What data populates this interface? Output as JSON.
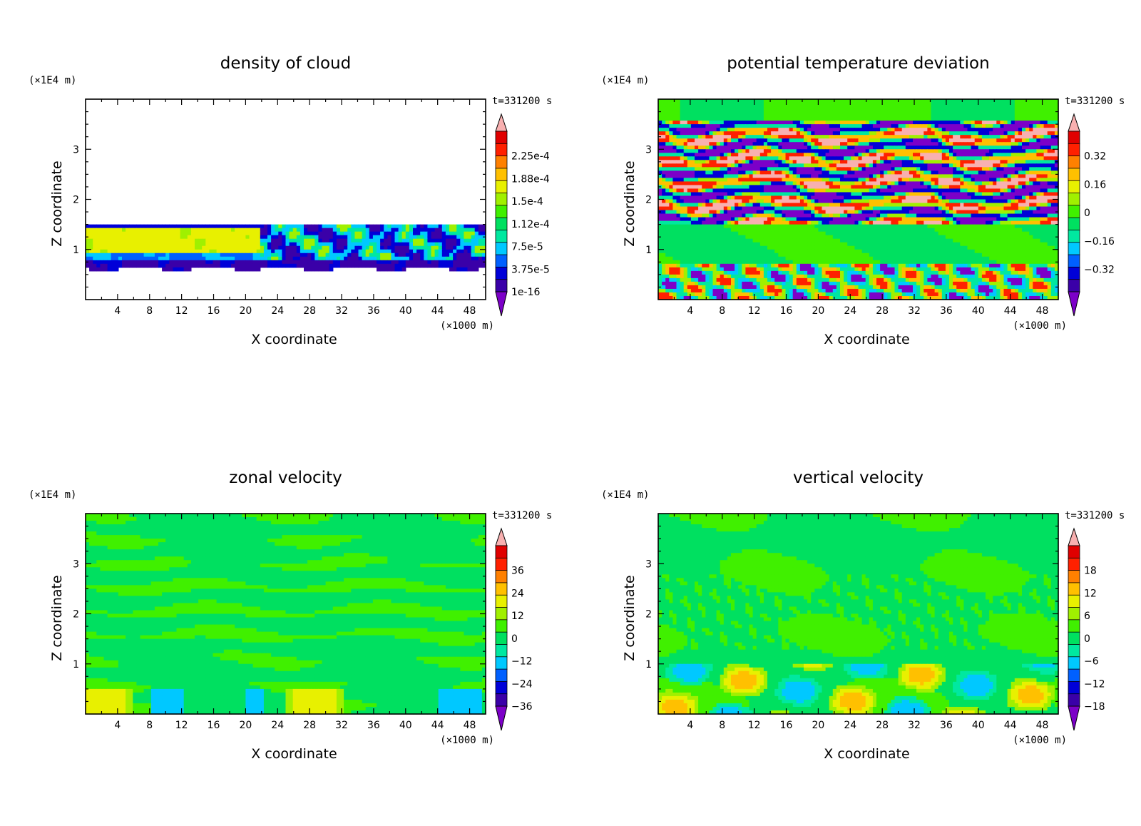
{
  "figure": {
    "colors": {
      "background": "#ffffff",
      "frame": "#000000",
      "palette": [
        "#7c00c8",
        "#3a00a8",
        "#0000d8",
        "#0060ff",
        "#00c8ff",
        "#00e8a0",
        "#00e060",
        "#40f000",
        "#a0f000",
        "#e8f000",
        "#ffc000",
        "#ff8000",
        "#ff2000",
        "#e00000",
        "#f8b0b0"
      ]
    },
    "chart_data": [
      {
        "type": "heatmap",
        "title": "density of cloud",
        "xlabel": "X coordinate",
        "ylabel": "Z coordinate",
        "x_unit": "(×1000 m)",
        "y_unit": "(×1E4 m)",
        "time": "t=331200 s",
        "xlim": [
          0,
          50
        ],
        "ylim": [
          0,
          4
        ],
        "xticks": [
          "4",
          "8",
          "12",
          "16",
          "20",
          "24",
          "28",
          "32",
          "36",
          "40",
          "44",
          "48"
        ],
        "yticks": [
          "1",
          "2",
          "3"
        ],
        "colorbar_labels": [
          "2.25e-4",
          "1.88e-4",
          "1.5e-4",
          "1.12e-4",
          "7.5e-5",
          "3.75e-5",
          "1e-16"
        ],
        "pattern": "cloud"
      },
      {
        "type": "heatmap",
        "title": "potential temperature deviation",
        "xlabel": "X coordinate",
        "ylabel": "Z coordinate",
        "x_unit": "(×1000 m)",
        "y_unit": "(×1E4 m)",
        "time": "t=331200 s",
        "xlim": [
          0,
          50
        ],
        "ylim": [
          0,
          4
        ],
        "xticks": [
          "4",
          "8",
          "12",
          "16",
          "20",
          "24",
          "28",
          "32",
          "36",
          "40",
          "44",
          "48"
        ],
        "yticks": [
          "1",
          "2",
          "3"
        ],
        "colorbar_labels": [
          "0.32",
          "0.16",
          "0",
          "−0.16",
          "−0.32"
        ],
        "pattern": "theta"
      },
      {
        "type": "heatmap",
        "title": "zonal velocity",
        "xlabel": "X coordinate",
        "ylabel": "Z coordinate",
        "x_unit": "(×1000 m)",
        "y_unit": "(×1E4 m)",
        "time": "t=331200 s",
        "xlim": [
          0,
          50
        ],
        "ylim": [
          0,
          4
        ],
        "xticks": [
          "4",
          "8",
          "12",
          "16",
          "20",
          "24",
          "28",
          "32",
          "36",
          "40",
          "44",
          "48"
        ],
        "yticks": [
          "1",
          "2",
          "3"
        ],
        "colorbar_labels": [
          "36",
          "24",
          "12",
          "0",
          "−12",
          "−24",
          "−36"
        ],
        "pattern": "zonal"
      },
      {
        "type": "heatmap",
        "title": "vertical velocity",
        "xlabel": "X coordinate",
        "ylabel": "Z coordinate",
        "x_unit": "(×1000 m)",
        "y_unit": "(×1E4 m)",
        "time": "t=331200 s",
        "xlim": [
          0,
          50
        ],
        "ylim": [
          0,
          4
        ],
        "xticks": [
          "4",
          "8",
          "12",
          "16",
          "20",
          "24",
          "28",
          "32",
          "36",
          "40",
          "44",
          "48"
        ],
        "yticks": [
          "1",
          "2",
          "3"
        ],
        "colorbar_labels": [
          "18",
          "12",
          "6",
          "0",
          "−6",
          "−12",
          "−18"
        ],
        "pattern": "vertical"
      }
    ]
  }
}
